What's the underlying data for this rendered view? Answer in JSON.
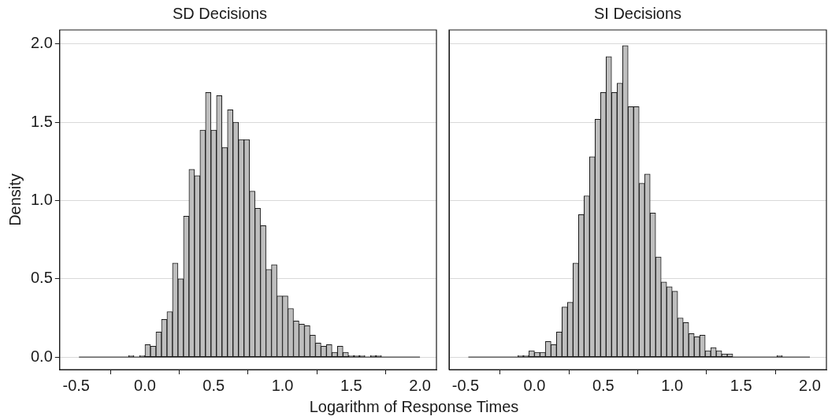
{
  "chart_data": [
    {
      "type": "histogram",
      "title": "SD Decisions",
      "xlabel": "Logarithm of Response Times",
      "ylabel": "Density",
      "color": "#bebebe",
      "grid": "y",
      "xlim": [
        -0.62,
        2.12
      ],
      "xticks": [
        -0.5,
        {
          "value": 0,
          "label": "0.0"
        },
        0.5,
        {
          "value": 1,
          "label": "1.0"
        },
        1.5,
        {
          "value": 2,
          "label": "2.0"
        }
      ],
      "ylim": [
        -0.08,
        2.09
      ],
      "yticks": [
        {
          "value": 0,
          "label": "0.0"
        },
        0.5,
        {
          "value": 1,
          "label": "1.0"
        },
        1.5,
        {
          "value": 2,
          "label": "2.0"
        }
      ],
      "bins": [
        -0.48,
        -0.44,
        -0.4,
        -0.36,
        -0.32,
        -0.28,
        -0.24,
        -0.2,
        -0.16,
        -0.12,
        -0.08,
        -0.04,
        0,
        0.04,
        0.08,
        0.12,
        0.16,
        0.2,
        0.24,
        0.28,
        0.32,
        0.36,
        0.4,
        0.44,
        0.48,
        0.52,
        0.56,
        0.6,
        0.64,
        0.68,
        0.72,
        0.76,
        0.8,
        0.84,
        0.88,
        0.92,
        0.96,
        1,
        1.04,
        1.08,
        1.12,
        1.16,
        1.2,
        1.24,
        1.28,
        1.32,
        1.36,
        1.4,
        1.44,
        1.48,
        1.52,
        1.56,
        1.6,
        1.64,
        1.68,
        1.72,
        1.76,
        1.8,
        1.84,
        1.88,
        1.92,
        1.96,
        2
      ],
      "values": [
        0,
        0,
        0,
        0,
        0,
        0,
        0,
        0,
        0,
        0.01,
        0,
        0.01,
        0.08,
        0.07,
        0.16,
        0.24,
        0.29,
        0.6,
        0.5,
        0.9,
        1.2,
        1.16,
        1.45,
        1.69,
        1.45,
        1.67,
        1.34,
        1.58,
        1.5,
        1.39,
        1.39,
        1.06,
        0.95,
        0.84,
        0.56,
        0.59,
        0.39,
        0.39,
        0.31,
        0.23,
        0.21,
        0.2,
        0.14,
        0.09,
        0.07,
        0.08,
        0.03,
        0.07,
        0.03,
        0.01,
        0.01,
        0.01,
        0,
        0.01,
        0.01,
        0,
        0,
        0,
        0,
        0,
        0,
        0
      ]
    },
    {
      "type": "histogram",
      "title": "SI Decisions",
      "color": "#bebebe",
      "grid": "y",
      "tick_labels": "x",
      "xlim": [
        -0.62,
        2.12
      ],
      "xticks": [
        -0.5,
        {
          "value": 0,
          "label": "0.0"
        },
        0.5,
        {
          "value": 1,
          "label": "1.0"
        },
        1.5,
        {
          "value": 2,
          "label": "2.0"
        }
      ],
      "ylim": [
        -0.08,
        2.09
      ],
      "yticks": [
        0,
        0.5,
        1,
        1.5,
        2
      ],
      "bins": [
        -0.48,
        -0.44,
        -0.4,
        -0.36,
        -0.32,
        -0.28,
        -0.24,
        -0.2,
        -0.16,
        -0.12,
        -0.08,
        -0.04,
        0,
        0.04,
        0.08,
        0.12,
        0.16,
        0.2,
        0.24,
        0.28,
        0.32,
        0.36,
        0.4,
        0.44,
        0.48,
        0.52,
        0.56,
        0.6,
        0.64,
        0.68,
        0.72,
        0.76,
        0.8,
        0.84,
        0.88,
        0.92,
        0.96,
        1,
        1.04,
        1.08,
        1.12,
        1.16,
        1.2,
        1.24,
        1.28,
        1.32,
        1.36,
        1.4,
        1.44,
        1.48,
        1.52,
        1.56,
        1.6,
        1.64,
        1.68,
        1.72,
        1.76,
        1.8,
        1.84,
        1.88,
        1.92,
        1.96,
        2
      ],
      "values": [
        0,
        0,
        0,
        0,
        0,
        0,
        0,
        0,
        0,
        0.01,
        0.01,
        0.04,
        0.03,
        0.03,
        0.1,
        0.08,
        0.16,
        0.32,
        0.35,
        0.6,
        0.91,
        1.03,
        1.28,
        1.52,
        1.69,
        1.92,
        1.69,
        1.75,
        1.99,
        1.6,
        1.6,
        1.11,
        1.17,
        0.92,
        0.64,
        0.48,
        0.45,
        0.42,
        0.25,
        0.22,
        0.15,
        0.13,
        0.14,
        0.04,
        0.06,
        0.04,
        0.02,
        0.02,
        0,
        0,
        0,
        0,
        0,
        0,
        0,
        0,
        0.01,
        0,
        0,
        0,
        0,
        0
      ]
    }
  ]
}
